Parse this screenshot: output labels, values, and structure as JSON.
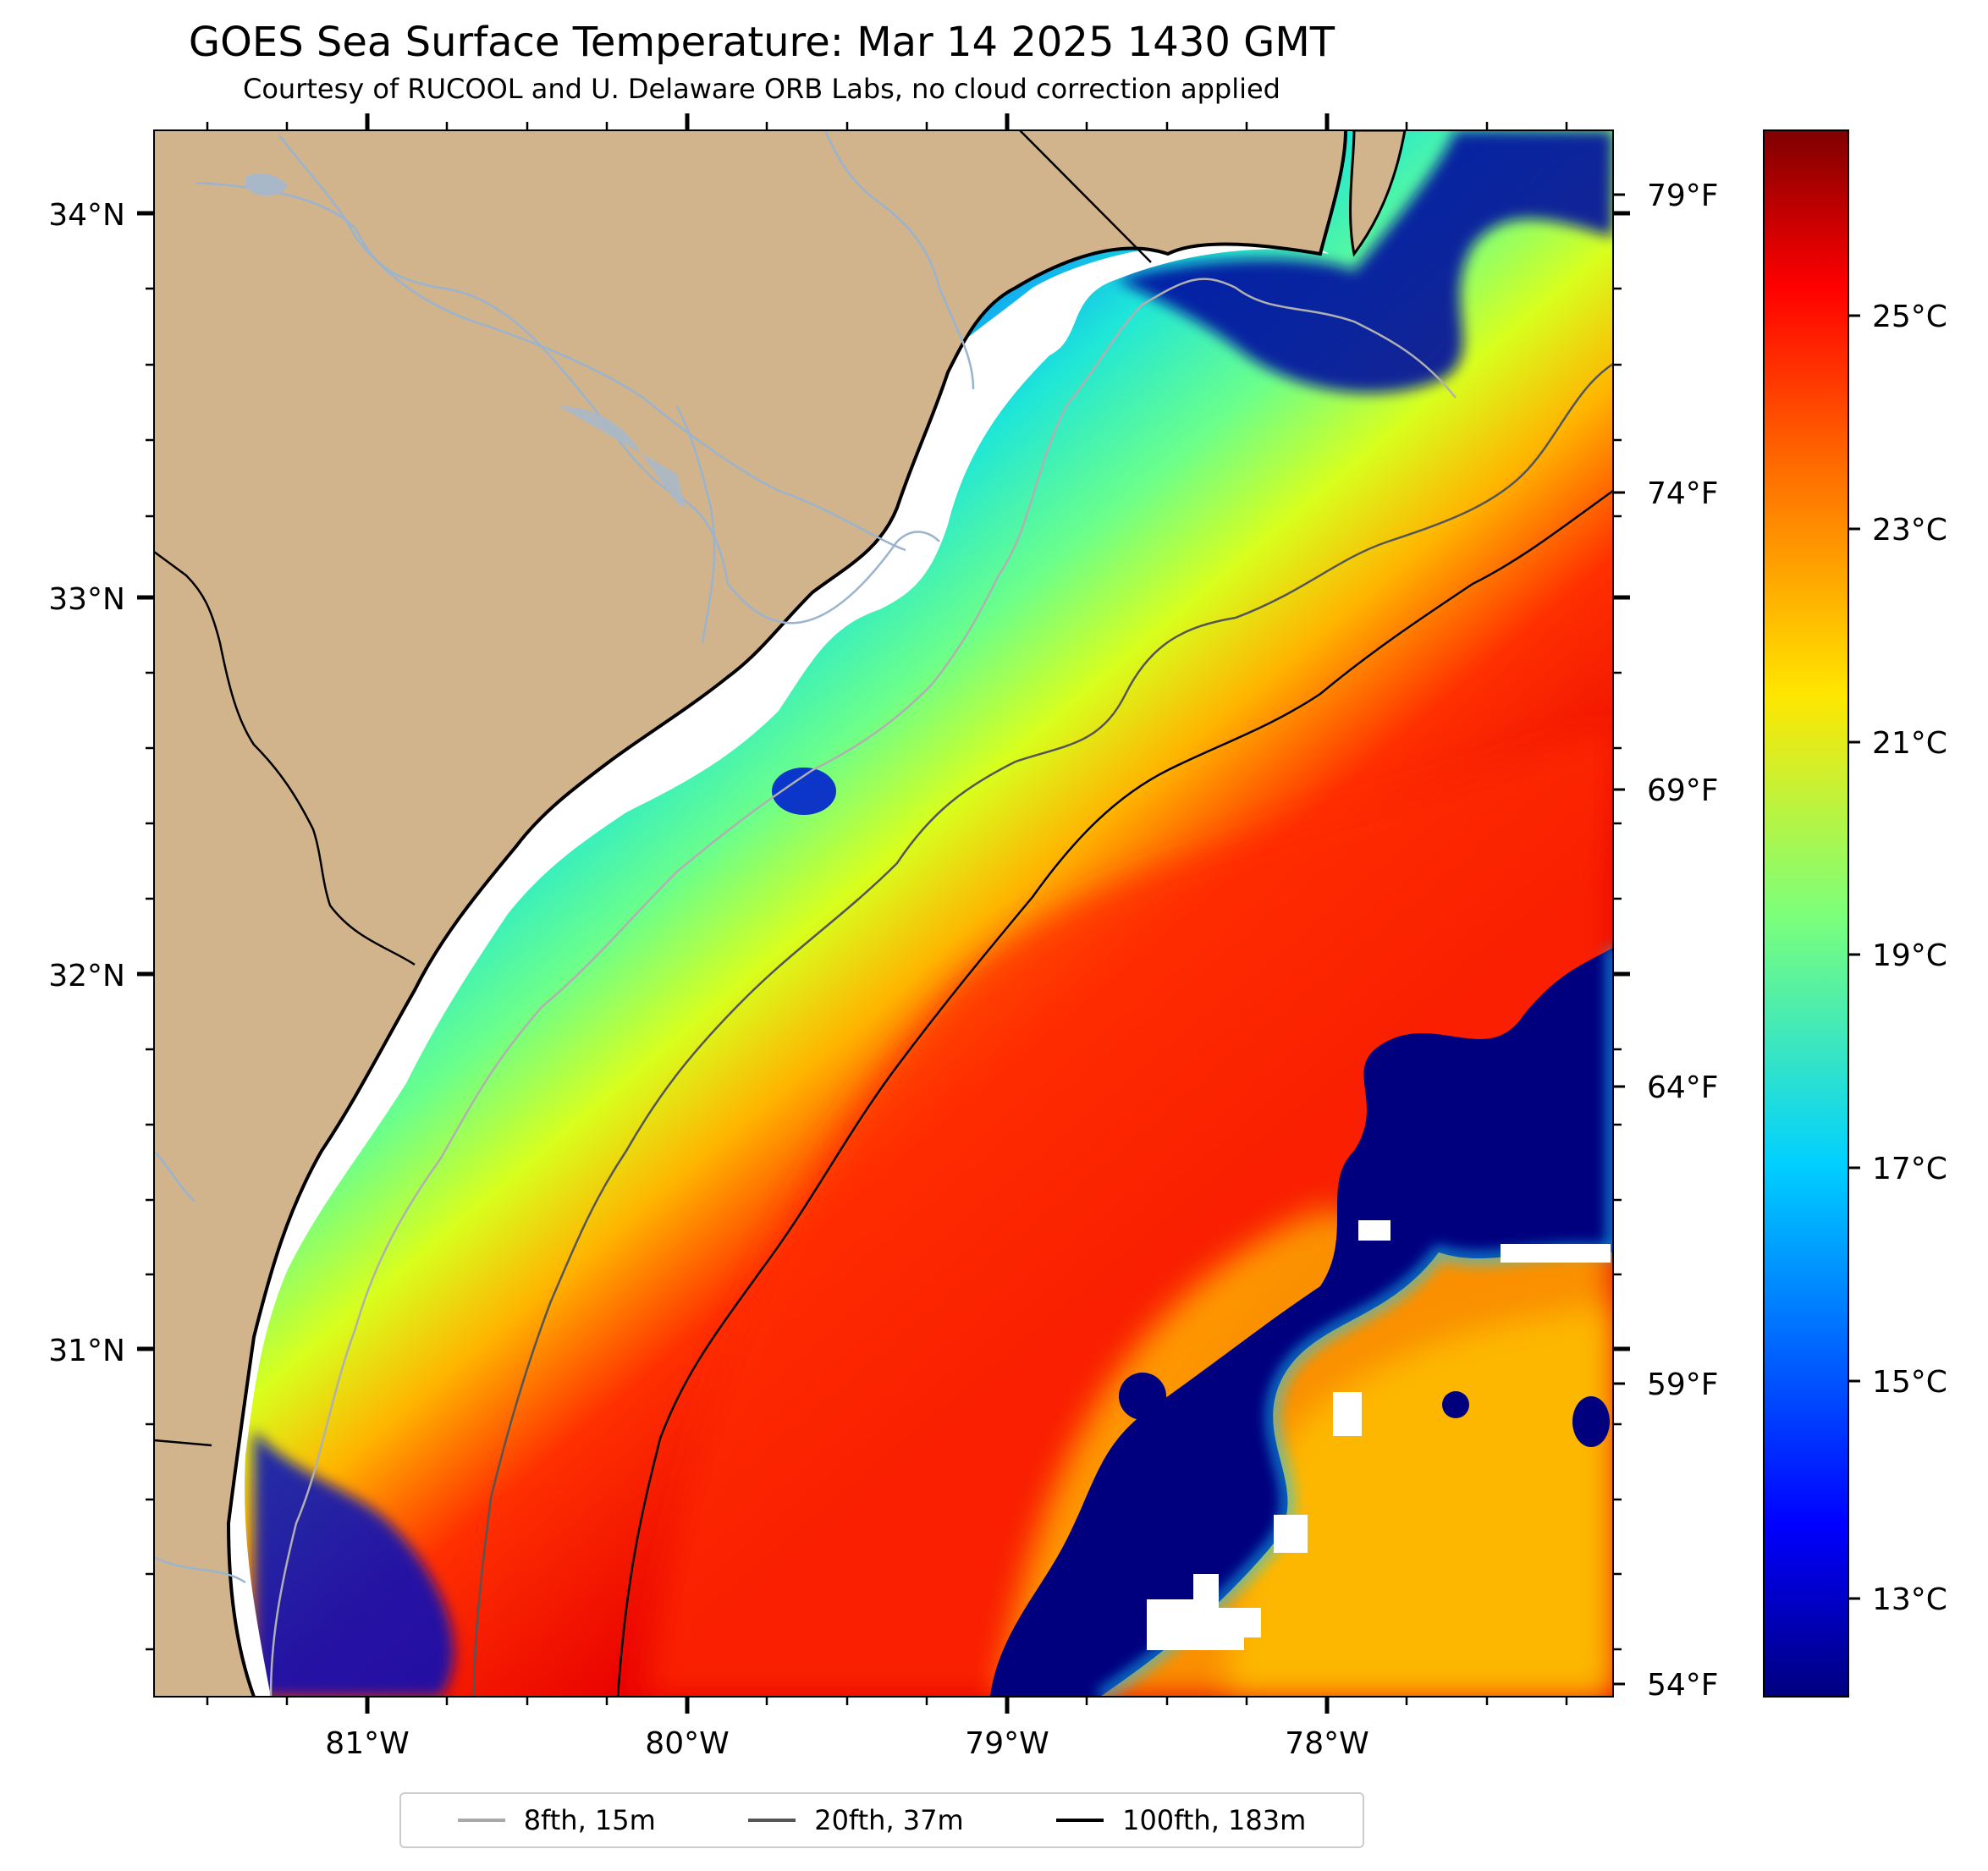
{
  "title": "GOES Sea Surface Temperature: Mar 14 2025 1430 GMT",
  "subtitle": "Courtesy of RUCOOL and U. Delaware ORB Labs, no cloud correction applied",
  "map": {
    "lat_range": [
      30.1,
      34.22
    ],
    "lon_range": [
      -81.67,
      -77.11
    ],
    "lat_ticks": [
      "34°N",
      "33°N",
      "32°N",
      "31°N"
    ],
    "lon_ticks": [
      "81°W",
      "80°W",
      "79°W",
      "78°W"
    ],
    "colors": {
      "land": "#d2b48c",
      "no_data": "#ffffff",
      "rivers": "#9ab3cf"
    }
  },
  "fahrenheit_axis": {
    "labels": [
      "79°F",
      "74°F",
      "69°F",
      "64°F",
      "59°F",
      "54°F"
    ]
  },
  "colorbar": {
    "colormap": "jet",
    "range_c": [
      12,
      27
    ],
    "labels": [
      "25°C",
      "23°C",
      "21°C",
      "19°C",
      "17°C",
      "15°C",
      "13°C"
    ]
  },
  "legend": {
    "items": [
      {
        "label": "8fth, 15m",
        "color": "#a9a9a9"
      },
      {
        "label": "20fth, 37m",
        "color": "#555555"
      },
      {
        "label": "100fth, 183m",
        "color": "#000000"
      }
    ]
  }
}
